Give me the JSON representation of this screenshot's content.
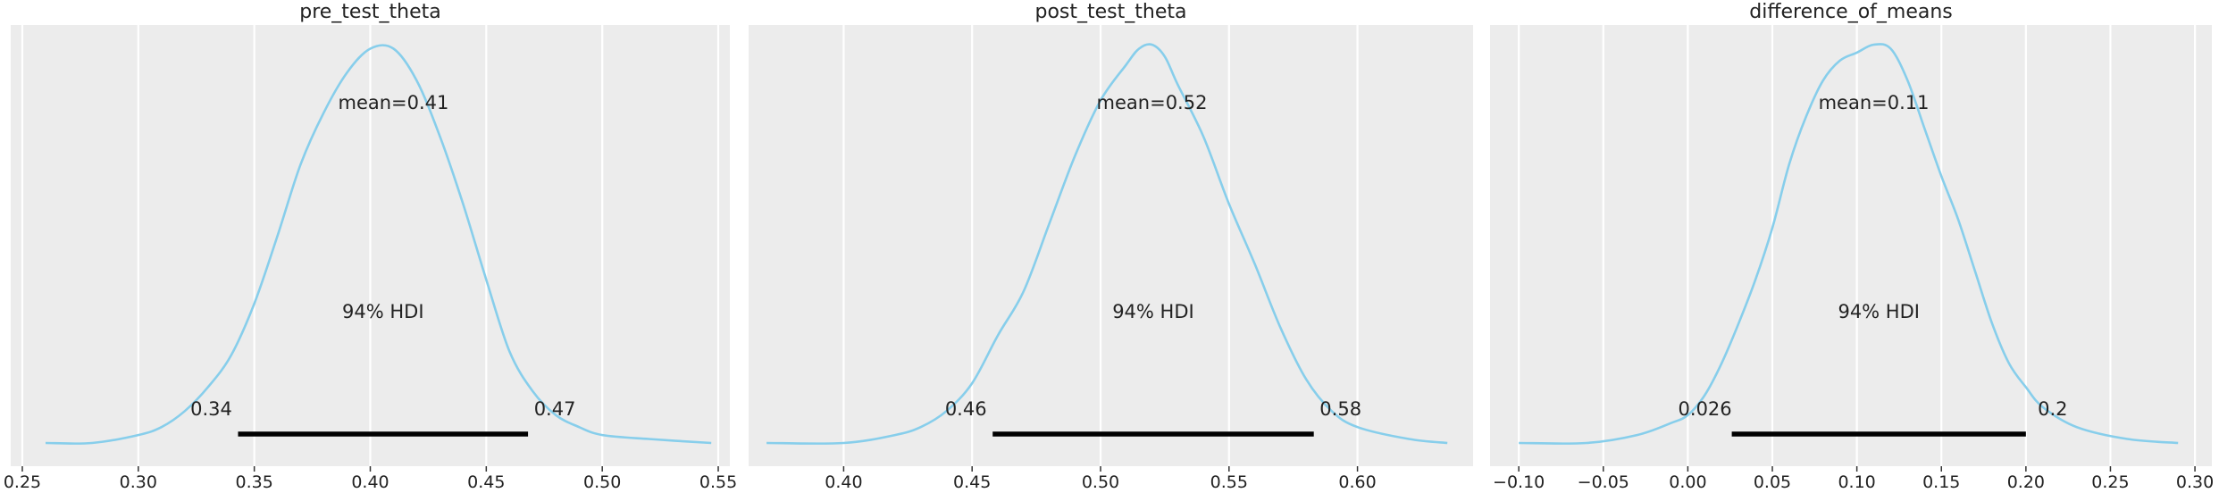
{
  "chart_data": [
    {
      "type": "area",
      "title": "pre_test_theta",
      "xlim": [
        0.245,
        0.555
      ],
      "xticks": [
        0.25,
        0.3,
        0.35,
        0.4,
        0.45,
        0.5,
        0.55
      ],
      "xtick_labels": [
        "0.25",
        "0.30",
        "0.35",
        "0.40",
        "0.45",
        "0.50",
        "0.55"
      ],
      "mean": 0.41,
      "mean_label": "mean=0.41",
      "hdi_label": "94% HDI",
      "hdi": [
        0.343,
        0.468
      ],
      "hdi_low_label": "0.34",
      "hdi_high_label": "0.47",
      "density": {
        "x": [
          0.26,
          0.28,
          0.3,
          0.31,
          0.32,
          0.33,
          0.34,
          0.35,
          0.36,
          0.37,
          0.38,
          0.39,
          0.4,
          0.41,
          0.42,
          0.43,
          0.44,
          0.45,
          0.46,
          0.47,
          0.48,
          0.49,
          0.5,
          0.52,
          0.547
        ],
        "y": [
          0.0,
          0.0,
          0.02,
          0.04,
          0.08,
          0.14,
          0.22,
          0.35,
          0.52,
          0.7,
          0.83,
          0.93,
          0.99,
          0.99,
          0.91,
          0.77,
          0.6,
          0.41,
          0.23,
          0.13,
          0.07,
          0.04,
          0.02,
          0.01,
          0.0
        ]
      }
    },
    {
      "type": "area",
      "title": "post_test_theta",
      "xlim": [
        0.363,
        0.645
      ],
      "xticks": [
        0.4,
        0.45,
        0.5,
        0.55,
        0.6
      ],
      "xtick_labels": [
        "0.40",
        "0.45",
        "0.50",
        "0.55",
        "0.60"
      ],
      "mean": 0.52,
      "mean_label": "mean=0.52",
      "hdi_label": "94% HDI",
      "hdi": [
        0.458,
        0.583
      ],
      "hdi_low_label": "0.46",
      "hdi_high_label": "0.58",
      "density": {
        "x": [
          0.37,
          0.4,
          0.42,
          0.43,
          0.44,
          0.45,
          0.46,
          0.47,
          0.48,
          0.49,
          0.5,
          0.51,
          0.515,
          0.52,
          0.525,
          0.53,
          0.54,
          0.55,
          0.56,
          0.57,
          0.58,
          0.59,
          0.6,
          0.62,
          0.635
        ],
        "y": [
          0.0,
          0.0,
          0.02,
          0.04,
          0.08,
          0.15,
          0.27,
          0.38,
          0.55,
          0.72,
          0.86,
          0.95,
          0.99,
          1.0,
          0.97,
          0.9,
          0.77,
          0.6,
          0.45,
          0.29,
          0.16,
          0.08,
          0.04,
          0.01,
          0.0
        ]
      }
    },
    {
      "type": "area",
      "title": "difference_of_means",
      "xlim": [
        -0.117,
        0.31
      ],
      "xticks": [
        -0.1,
        -0.05,
        0.0,
        0.05,
        0.1,
        0.15,
        0.2,
        0.25,
        0.3
      ],
      "xtick_labels": [
        "−0.10",
        "−0.05",
        "0.00",
        "0.05",
        "0.10",
        "0.15",
        "0.20",
        "0.25",
        "0.30"
      ],
      "mean": 0.11,
      "mean_label": "mean=0.11",
      "hdi_label": "94% HDI",
      "hdi": [
        0.026,
        0.2
      ],
      "hdi_low_label": "0.026",
      "hdi_high_label": "0.2",
      "density": {
        "x": [
          -0.1,
          -0.06,
          -0.03,
          -0.01,
          0.0,
          0.01,
          0.02,
          0.03,
          0.04,
          0.05,
          0.06,
          0.07,
          0.08,
          0.09,
          0.1,
          0.11,
          0.12,
          0.13,
          0.14,
          0.15,
          0.16,
          0.17,
          0.18,
          0.19,
          0.2,
          0.21,
          0.23,
          0.26,
          0.29
        ],
        "y": [
          0.0,
          0.0,
          0.02,
          0.05,
          0.07,
          0.12,
          0.2,
          0.3,
          0.41,
          0.54,
          0.7,
          0.82,
          0.91,
          0.96,
          0.98,
          1.0,
          0.99,
          0.91,
          0.79,
          0.67,
          0.56,
          0.43,
          0.3,
          0.2,
          0.14,
          0.09,
          0.04,
          0.01,
          0.0
        ]
      }
    }
  ]
}
